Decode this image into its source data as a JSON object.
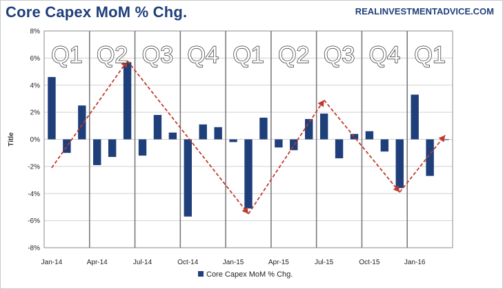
{
  "header": {
    "title": "Core Capex MoM % Chg.",
    "source": "REALINVESTMENTADVICE.COM"
  },
  "quarter_labels": [
    "Q1",
    "Q2",
    "Q3",
    "Q4",
    "Q1",
    "Q2",
    "Q3",
    "Q4",
    "Q1"
  ],
  "colors": {
    "bar": "#1f3f7a",
    "trend": "#c0392b",
    "grid": "#d0d0d0",
    "divider": "#7a7a7a",
    "axis": "#888888"
  },
  "chart_data": {
    "type": "bar",
    "title": "Core Capex MoM % Chg.",
    "xlabel": "",
    "ylabel": "Title",
    "ylim": [
      -8,
      8
    ],
    "yticks": [
      -8,
      -6,
      -4,
      -2,
      0,
      2,
      4,
      6,
      8
    ],
    "ytick_labels": [
      "-8%",
      "-6%",
      "-4%",
      "-2%",
      "0%",
      "2%",
      "4%",
      "6%",
      "8%"
    ],
    "xtick_labels": [
      "Jan-14",
      "Apr-14",
      "Jul-14",
      "Oct-14",
      "Jan-15",
      "Apr-15",
      "Jul-15",
      "Oct-15",
      "Jan-16"
    ],
    "grid": true,
    "legend": "bottom",
    "categories": [
      "Jan-14",
      "Feb-14",
      "Mar-14",
      "Apr-14",
      "May-14",
      "Jun-14",
      "Jul-14",
      "Aug-14",
      "Sep-14",
      "Oct-14",
      "Nov-14",
      "Dec-14",
      "Jan-15",
      "Feb-15",
      "Mar-15",
      "Apr-15",
      "May-15",
      "Jun-15",
      "Jul-15",
      "Aug-15",
      "Sep-15",
      "Oct-15",
      "Nov-15",
      "Dec-15",
      "Jan-16",
      "Feb-16",
      "Mar-16"
    ],
    "series": [
      {
        "name": "Core Capex MoM % Chg.",
        "values": [
          4.6,
          -1.0,
          2.5,
          -1.9,
          -1.3,
          5.7,
          -1.2,
          1.8,
          0.5,
          -5.7,
          1.1,
          0.9,
          -0.2,
          -5.1,
          1.6,
          -0.6,
          -0.8,
          1.5,
          1.9,
          -1.4,
          0.4,
          0.6,
          -0.9,
          -3.6,
          3.3,
          -2.7,
          0.0
        ]
      }
    ],
    "trend_line": [
      {
        "x": "Jan-14",
        "y": -2.1
      },
      {
        "x": "Jun-14",
        "y": 5.8
      },
      {
        "x": "Feb-15",
        "y": -5.5
      },
      {
        "x": "Jul-15",
        "y": 2.9
      },
      {
        "x": "Dec-15",
        "y": -3.9
      },
      {
        "x": "Mar-16",
        "y": 0.3
      }
    ]
  }
}
